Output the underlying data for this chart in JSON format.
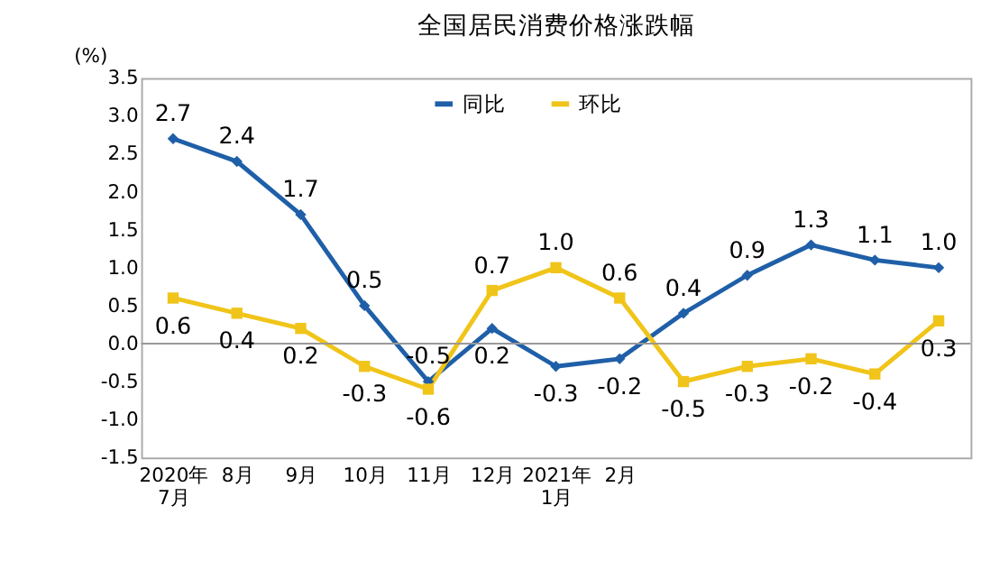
{
  "chart_data": {
    "type": "line",
    "title": "全国居民消费价格涨跌幅",
    "ylabel": "(%)",
    "categories": [
      "2020年\n7月",
      "8月",
      "9月",
      "10月",
      "11月",
      "12月",
      "2021年\n1月",
      "2月",
      null,
      null,
      null,
      null,
      null
    ],
    "series": [
      {
        "name": "同比",
        "color": "#1f5fa8",
        "marker": "diamond",
        "values": [
          2.7,
          2.4,
          1.7,
          0.5,
          -0.5,
          0.2,
          -0.3,
          -0.2,
          0.4,
          0.9,
          1.3,
          1.1,
          1.0
        ],
        "value_labels": [
          "2.7",
          "2.4",
          "1.7",
          "0.5",
          "-0.5",
          "0.2",
          "-0.3",
          "-0.2",
          "0.4",
          "0.9",
          "1.3",
          "1.1",
          "1.0"
        ]
      },
      {
        "name": "环比",
        "color": "#f0c419",
        "marker": "square",
        "values": [
          0.6,
          0.4,
          0.2,
          -0.3,
          -0.6,
          0.7,
          1.0,
          0.6,
          -0.5,
          -0.3,
          -0.2,
          -0.4,
          0.3
        ],
        "value_labels": [
          "0.6",
          "0.4",
          "0.2",
          "-0.3",
          "-0.6",
          "0.7",
          "1.0",
          "0.6",
          "-0.5",
          "-0.3",
          "-0.2",
          "-0.4",
          "0.3"
        ]
      }
    ],
    "ylim": [
      -1.5,
      3.5
    ],
    "yticks": [
      {
        "value": -1.5,
        "label": "-1.5"
      },
      {
        "value": -1.0,
        "label": "-1.0"
      },
      {
        "value": -0.5,
        "label": "-0.5"
      },
      {
        "value": 0,
        "label": "0.0"
      },
      {
        "value": 0.5,
        "label": "0.5"
      },
      {
        "value": 1.0,
        "label": "1.0"
      },
      {
        "value": 1.5,
        "label": "1.5"
      },
      {
        "value": 2.0,
        "label": "2.0"
      },
      {
        "value": 2.5,
        "label": "2.5"
      },
      {
        "value": 3.0,
        "label": "3.0"
      },
      {
        "value": 3.5,
        "label": "3.5"
      }
    ],
    "ref_lines": [
      {
        "axis": "y",
        "value": 0,
        "color": "#999999"
      }
    ],
    "data_labels": true,
    "grid": false,
    "legend": "top",
    "line_style": "solid"
  }
}
